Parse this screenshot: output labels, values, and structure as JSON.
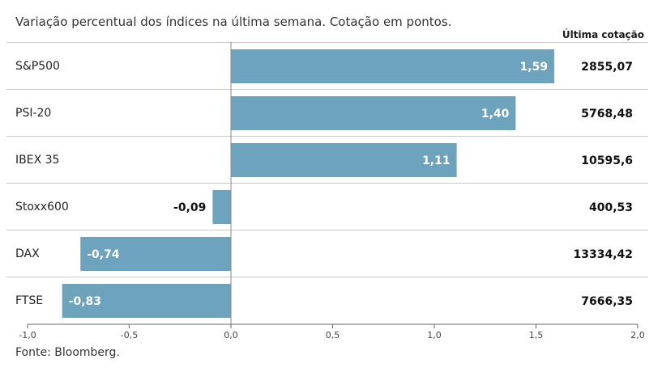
{
  "header": {
    "subtitle": "Variação percentual dos índices na última semana. Cotação em pontos.",
    "last_quote_label": "Última cotação"
  },
  "footer": {
    "source": "Fonte: Bloomberg."
  },
  "chart_data": {
    "type": "bar",
    "orientation": "horizontal",
    "title": "Variação percentual dos índices na última semana. Cotação em pontos.",
    "categories": [
      "S&P500",
      "PSI-20",
      "IBEX 35",
      "Stoxx600",
      "DAX",
      "FTSE"
    ],
    "values": [
      1.59,
      1.4,
      1.11,
      -0.09,
      -0.74,
      -0.83
    ],
    "value_labels": [
      "1,59",
      "1,40",
      "1,11",
      "-0,09",
      "-0,74",
      "-0,83"
    ],
    "last_quote": [
      "2855,07",
      "5768,48",
      "10595,6",
      "400,53",
      "13334,42",
      "7666,35"
    ],
    "xlim": [
      -1.0,
      2.0
    ],
    "xticks": [
      -1.0,
      -0.5,
      0.0,
      0.5,
      1.0,
      1.5,
      2.0
    ],
    "xtick_labels": [
      "-1,0",
      "-0,5",
      "0,0",
      "0,5",
      "1,0",
      "1,5",
      "2,0"
    ],
    "bar_color": "#6da3bd",
    "grid": false
  }
}
